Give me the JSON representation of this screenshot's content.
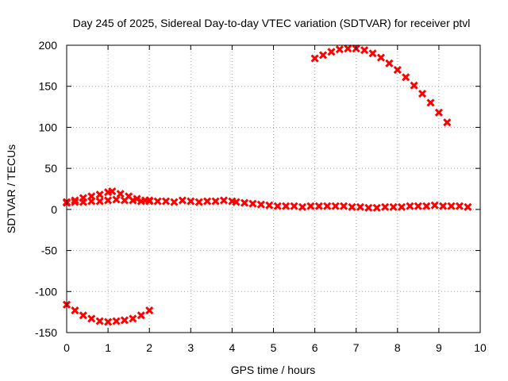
{
  "chart_data": {
    "type": "scatter",
    "title": "Day 245 of 2025, Sidereal Day-to-day VTEC variation (SDTVAR) for receiver ptvl",
    "xlabel": "GPS time / hours",
    "ylabel": "SDTVAR / TECUs",
    "xlim": [
      0,
      10
    ],
    "ylim": [
      -150,
      200
    ],
    "xticks": [
      0,
      1,
      2,
      3,
      4,
      5,
      6,
      7,
      8,
      9,
      10
    ],
    "yticks": [
      -150,
      -100,
      -50,
      0,
      50,
      100,
      150,
      200
    ],
    "xtick_labels": [
      "0",
      "1",
      "2",
      "3",
      "4",
      "5",
      "6",
      "7",
      "8",
      "9",
      "10"
    ],
    "ytick_labels": [
      "-150",
      "-100",
      "-50",
      "0",
      "50",
      "100",
      "150",
      "200"
    ],
    "grid": true,
    "series_color": "#ff0000",
    "series": [
      {
        "values": [
          [
            0.0,
            9
          ],
          [
            0.2,
            9
          ],
          [
            0.4,
            9
          ],
          [
            0.6,
            10
          ],
          [
            0.8,
            10
          ],
          [
            1.0,
            11
          ],
          [
            1.2,
            12
          ],
          [
            1.4,
            11
          ],
          [
            1.6,
            11
          ],
          [
            1.8,
            10
          ],
          [
            2.0,
            10
          ],
          [
            0.0,
            8
          ],
          [
            0.2,
            11
          ],
          [
            0.4,
            14
          ],
          [
            0.6,
            16
          ],
          [
            0.8,
            18
          ],
          [
            1.0,
            21
          ],
          [
            1.1,
            22
          ],
          [
            1.3,
            19
          ],
          [
            1.5,
            16
          ],
          [
            1.7,
            13
          ],
          [
            1.9,
            11
          ],
          [
            2.0,
            11
          ],
          [
            2.2,
            10
          ],
          [
            2.4,
            10
          ],
          [
            2.6,
            9
          ],
          [
            2.8,
            11
          ],
          [
            3.0,
            10
          ],
          [
            3.2,
            9
          ],
          [
            3.4,
            10
          ],
          [
            3.6,
            10
          ],
          [
            3.8,
            11
          ],
          [
            4.0,
            10
          ],
          [
            4.1,
            9
          ],
          [
            4.3,
            8
          ],
          [
            4.5,
            7
          ],
          [
            4.7,
            6
          ],
          [
            4.9,
            5
          ],
          [
            5.1,
            4
          ],
          [
            5.3,
            4
          ],
          [
            5.5,
            4
          ],
          [
            5.7,
            3
          ],
          [
            5.9,
            4
          ],
          [
            6.1,
            4
          ],
          [
            6.3,
            4
          ],
          [
            6.5,
            4
          ],
          [
            6.7,
            4
          ],
          [
            6.9,
            3
          ],
          [
            7.1,
            3
          ],
          [
            7.3,
            2
          ],
          [
            7.5,
            2
          ],
          [
            7.7,
            3
          ],
          [
            7.9,
            3
          ],
          [
            8.1,
            3
          ],
          [
            8.3,
            4
          ],
          [
            8.5,
            4
          ],
          [
            8.7,
            4
          ],
          [
            8.9,
            5
          ],
          [
            9.1,
            4
          ],
          [
            9.3,
            4
          ],
          [
            9.5,
            4
          ],
          [
            9.7,
            3
          ],
          [
            0.0,
            -116
          ],
          [
            0.2,
            -123
          ],
          [
            0.4,
            -129
          ],
          [
            0.6,
            -133
          ],
          [
            0.8,
            -136
          ],
          [
            1.0,
            -137
          ],
          [
            1.2,
            -136
          ],
          [
            1.4,
            -135
          ],
          [
            1.6,
            -133
          ],
          [
            1.8,
            -129
          ],
          [
            2.0,
            -123
          ],
          [
            6.0,
            184
          ],
          [
            6.2,
            188
          ],
          [
            6.4,
            192
          ],
          [
            6.6,
            195
          ],
          [
            6.8,
            196
          ],
          [
            7.0,
            196
          ],
          [
            7.2,
            194
          ],
          [
            7.4,
            190
          ],
          [
            7.6,
            185
          ],
          [
            7.8,
            178
          ],
          [
            8.0,
            170
          ],
          [
            8.2,
            161
          ],
          [
            8.4,
            151
          ],
          [
            8.6,
            141
          ],
          [
            8.8,
            130
          ],
          [
            9.0,
            118
          ],
          [
            9.2,
            106
          ]
        ]
      }
    ]
  }
}
